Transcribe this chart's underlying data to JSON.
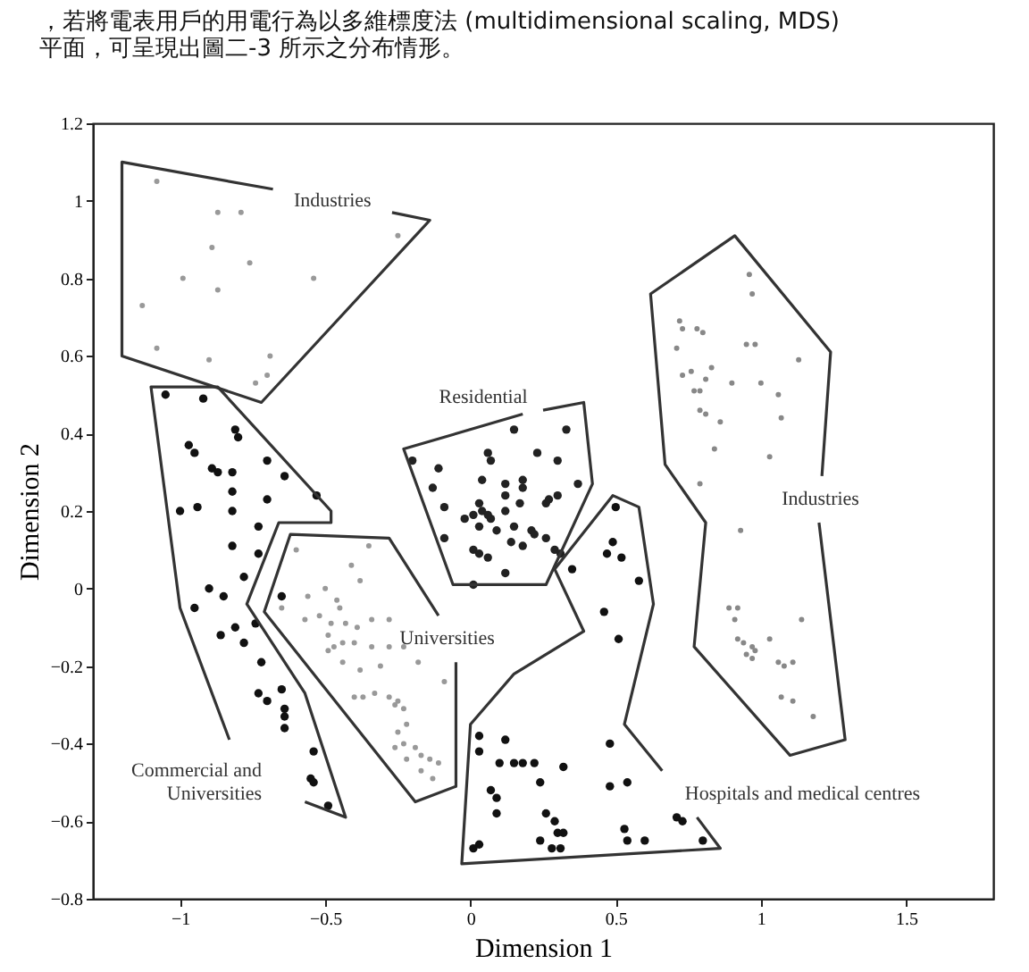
{
  "chart_data": {
    "type": "scatter",
    "xlabel": "Dimension 1",
    "ylabel": "Dimension 2",
    "xlim": [
      -1.3,
      1.8
    ],
    "ylim": [
      -0.8,
      1.2
    ],
    "xticks": [
      -1,
      -0.5,
      0,
      0.5,
      1,
      1.5
    ],
    "yticks": [
      -0.8,
      -0.6,
      -0.4,
      -0.2,
      0,
      0.2,
      0.4,
      0.6,
      0.8,
      1,
      1.2
    ],
    "grid": false,
    "marker": "circle",
    "annotations": [
      "，若將電表用戶的用電行為以多維標度法 (multidimensional scaling, MDS)",
      "平面，可呈現出圖二-3 所示之分布情形。"
    ],
    "series": [
      {
        "color": "#999999",
        "x": [
          -1.08,
          -0.87,
          -0.79,
          -0.89,
          -0.76,
          -0.99,
          -0.87,
          -0.54,
          -1.13,
          -0.25,
          -1.08,
          -0.9,
          -0.69,
          -0.7,
          -0.74
        ],
        "values": [
          1.05,
          0.97,
          0.97,
          0.88,
          0.84,
          0.8,
          0.77,
          0.8,
          0.73,
          0.91,
          0.62,
          0.59,
          0.6,
          0.55,
          0.53
        ]
      },
      {
        "color": "#111111",
        "x": [
          -1.05,
          -0.92,
          -0.81,
          -0.8,
          -0.97,
          -0.95,
          -0.89,
          -0.87,
          -0.82,
          -0.7,
          -0.64,
          -0.82,
          -0.7,
          -1.0,
          -0.94,
          -0.53,
          -0.82,
          -0.73,
          -0.82,
          -0.73,
          -0.78,
          -0.9,
          -0.85,
          -0.65,
          -0.95,
          -0.74,
          -0.81,
          -0.86,
          -0.78,
          -0.72,
          -0.65,
          -0.73,
          -0.7,
          -0.64,
          -0.64,
          -0.64,
          -0.54,
          -0.55,
          -0.54,
          -0.49
        ],
        "values": [
          0.5,
          0.49,
          0.41,
          0.39,
          0.37,
          0.35,
          0.31,
          0.3,
          0.3,
          0.33,
          0.29,
          0.25,
          0.23,
          0.2,
          0.21,
          0.24,
          0.2,
          0.16,
          0.11,
          0.09,
          0.03,
          0.0,
          -0.02,
          -0.02,
          -0.05,
          -0.09,
          -0.1,
          -0.12,
          -0.14,
          -0.19,
          -0.26,
          -0.27,
          -0.29,
          -0.31,
          -0.33,
          -0.36,
          -0.42,
          -0.49,
          -0.5,
          -0.56
        ]
      },
      {
        "color": "#999999",
        "x": [
          -0.6,
          -0.35,
          -0.41,
          -0.38,
          -0.56,
          -0.5,
          -0.46,
          -0.45,
          -0.65,
          -0.57,
          -0.52,
          -0.48,
          -0.43,
          -0.39,
          -0.34,
          -0.28,
          -0.49,
          -0.47,
          -0.44,
          -0.4,
          -0.34,
          -0.28,
          -0.23,
          -0.49,
          -0.44,
          -0.38,
          -0.31,
          -0.18,
          -0.09,
          -0.4,
          -0.37,
          -0.33,
          -0.28,
          -0.25,
          -0.23,
          -0.26,
          -0.22,
          -0.25,
          -0.23,
          -0.19,
          -0.26,
          -0.17,
          -0.14,
          -0.11,
          -0.17,
          -0.13,
          -0.22
        ],
        "values": [
          0.1,
          0.11,
          0.06,
          0.02,
          -0.02,
          0.0,
          -0.03,
          -0.05,
          -0.05,
          -0.08,
          -0.07,
          -0.09,
          -0.09,
          -0.1,
          -0.08,
          -0.08,
          -0.12,
          -0.15,
          -0.14,
          -0.14,
          -0.15,
          -0.15,
          -0.15,
          -0.16,
          -0.19,
          -0.21,
          -0.2,
          -0.19,
          -0.24,
          -0.28,
          -0.28,
          -0.27,
          -0.28,
          -0.29,
          -0.31,
          -0.3,
          -0.35,
          -0.37,
          -0.4,
          -0.41,
          -0.41,
          -0.43,
          -0.44,
          -0.45,
          -0.47,
          -0.49,
          -0.44
        ]
      },
      {
        "color": "#222222",
        "x": [
          -0.09,
          -0.02,
          0.01,
          0.04,
          0.07,
          0.12,
          0.03,
          0.09,
          0.15,
          0.21,
          0.01,
          0.06,
          0.14,
          0.18,
          0.12,
          0.01,
          -0.09,
          0.12,
          0.17,
          0.06,
          0.26,
          0.3,
          0.22,
          0.26,
          0.03,
          0.29,
          0.31,
          -0.2,
          -0.11,
          -0.13,
          0.15,
          0.06,
          0.07,
          0.04,
          0.12,
          0.18,
          0.18,
          0.23,
          0.03,
          0.33,
          0.3,
          0.37,
          0.27
        ],
        "values": [
          0.21,
          0.18,
          0.19,
          0.2,
          0.18,
          0.2,
          0.16,
          0.15,
          0.16,
          0.15,
          0.1,
          0.08,
          0.12,
          0.11,
          0.04,
          0.01,
          0.13,
          0.24,
          0.22,
          0.19,
          0.22,
          0.24,
          0.14,
          0.13,
          0.09,
          0.1,
          0.09,
          0.33,
          0.31,
          0.26,
          0.41,
          0.35,
          0.33,
          0.28,
          0.27,
          0.28,
          0.26,
          0.35,
          0.22,
          0.41,
          0.33,
          0.27,
          0.23
        ]
      },
      {
        "color": "#888888",
        "x": [
          0.96,
          0.97,
          0.72,
          0.73,
          0.78,
          0.8,
          0.95,
          0.98,
          1.13,
          0.71,
          0.73,
          0.76,
          0.81,
          0.83,
          0.77,
          0.79,
          0.9,
          1.0,
          1.06,
          0.79,
          0.81,
          0.86,
          1.07,
          0.84,
          1.03,
          0.79,
          0.93,
          0.89,
          0.92,
          0.91,
          1.14,
          0.92,
          0.94,
          0.97,
          0.98,
          0.95,
          0.97,
          1.03,
          1.06,
          1.08,
          1.11,
          1.07,
          1.11,
          1.18
        ],
        "values": [
          0.81,
          0.76,
          0.69,
          0.67,
          0.67,
          0.66,
          0.63,
          0.63,
          0.59,
          0.62,
          0.55,
          0.56,
          0.54,
          0.57,
          0.51,
          0.51,
          0.53,
          0.53,
          0.5,
          0.46,
          0.45,
          0.43,
          0.44,
          0.36,
          0.34,
          0.27,
          0.15,
          -0.05,
          -0.05,
          -0.08,
          -0.08,
          -0.13,
          -0.14,
          -0.15,
          -0.16,
          -0.17,
          -0.18,
          -0.13,
          -0.19,
          -0.2,
          -0.19,
          -0.28,
          -0.29,
          -0.33
        ]
      },
      {
        "color": "#111111",
        "x": [
          0.5,
          0.49,
          0.47,
          0.52,
          0.58,
          0.35,
          0.46,
          0.51,
          0.48,
          0.03,
          0.03,
          0.12,
          0.1,
          0.15,
          0.18,
          0.22,
          0.32,
          0.24,
          0.07,
          0.09,
          0.09,
          0.26,
          0.29,
          0.3,
          0.32,
          0.24,
          0.28,
          0.31,
          0.03,
          0.48,
          0.54,
          0.53,
          0.54,
          0.6,
          0.71,
          0.73,
          0.8,
          0.01
        ],
        "values": [
          0.21,
          0.12,
          0.09,
          0.08,
          0.02,
          0.05,
          -0.06,
          -0.13,
          -0.4,
          -0.38,
          -0.42,
          -0.39,
          -0.45,
          -0.45,
          -0.45,
          -0.45,
          -0.46,
          -0.5,
          -0.52,
          -0.54,
          -0.58,
          -0.58,
          -0.6,
          -0.63,
          -0.63,
          -0.65,
          -0.67,
          -0.67,
          -0.66,
          -0.51,
          -0.5,
          -0.62,
          -0.65,
          -0.65,
          -0.59,
          -0.6,
          -0.65,
          -0.67
        ]
      },
      {
        "type": "line",
        "marker": "none",
        "name": "Industries",
        "color": "#333333",
        "x": [
          -0.27,
          -0.14,
          -0.72,
          -1.2,
          -1.2,
          -0.68
        ],
        "values": [
          0.97,
          0.95,
          0.48,
          0.6,
          1.1,
          1.03
        ]
      },
      {
        "type": "line",
        "marker": "none",
        "name": "Commercial and\nUniversities",
        "color": "#333333",
        "x": [
          -0.83,
          -1.0,
          -1.1,
          -0.87,
          -0.48,
          -0.48,
          -0.66,
          -0.77,
          -0.57,
          -0.43,
          -0.57
        ],
        "values": [
          -0.39,
          -0.05,
          0.52,
          0.52,
          0.2,
          0.17,
          0.17,
          -0.04,
          -0.27,
          -0.59,
          -0.55
        ]
      },
      {
        "type": "line",
        "marker": "none",
        "name": "Universities",
        "color": "#333333",
        "x": [
          -0.11,
          -0.28,
          -0.62,
          -0.71,
          -0.19,
          -0.05,
          -0.05
        ],
        "values": [
          -0.07,
          0.13,
          0.14,
          -0.06,
          -0.55,
          -0.51,
          -0.19
        ]
      },
      {
        "type": "line",
        "marker": "none",
        "name": "Residential",
        "color": "#333333",
        "x": [
          0.25,
          0.39,
          0.42,
          0.26,
          -0.06,
          -0.23,
          0.18
        ],
        "values": [
          0.46,
          0.48,
          0.27,
          0.01,
          0.01,
          0.36,
          0.45
        ]
      },
      {
        "type": "line",
        "marker": "none",
        "name": "Industries",
        "color": "#333333",
        "x": [
          1.2,
          1.29,
          1.1,
          0.77,
          0.81,
          0.67,
          0.62,
          0.91,
          1.24,
          1.21
        ],
        "values": [
          0.17,
          -0.39,
          -0.43,
          -0.15,
          0.17,
          0.32,
          0.76,
          0.91,
          0.61,
          0.29
        ]
      },
      {
        "type": "line",
        "marker": "none",
        "name": "Hospitals and medical centres",
        "color": "#333333",
        "x": [
          0.78,
          0.86,
          -0.03,
          0.0,
          0.15,
          0.39,
          0.29,
          0.49,
          0.58,
          0.63,
          0.53,
          0.66
        ],
        "values": [
          -0.59,
          -0.67,
          -0.71,
          -0.35,
          -0.22,
          -0.11,
          0.05,
          0.24,
          0.21,
          -0.04,
          -0.35,
          -0.47
        ]
      }
    ]
  }
}
